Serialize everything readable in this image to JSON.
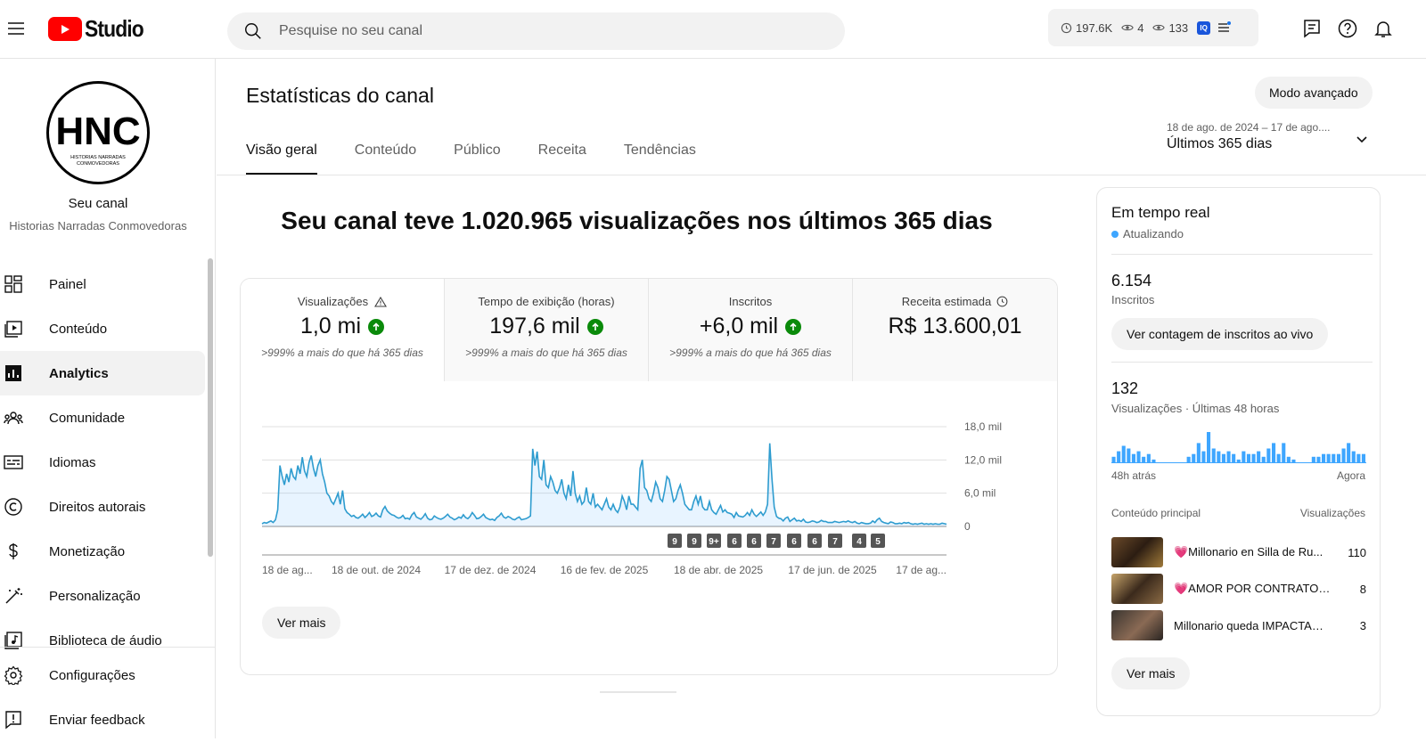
{
  "header": {
    "logo_text": "Studio",
    "search_placeholder": "Pesquise no seu canal",
    "stat_watch": "197.6K",
    "stat_a": "4",
    "stat_b": "133",
    "ext_label": "IQ"
  },
  "sidebar": {
    "avatar_text": "HNC",
    "avatar_sub1": "HISTORIAS NARRADAS",
    "avatar_sub2": "CONMOVEDORAS",
    "channel_label": "Seu canal",
    "channel_name": "Historias Narradas Conmovedoras",
    "items": [
      {
        "label": "Painel",
        "icon": "dashboard-icon"
      },
      {
        "label": "Conteúdo",
        "icon": "content-icon"
      },
      {
        "label": "Analytics",
        "icon": "analytics-icon",
        "active": true
      },
      {
        "label": "Comunidade",
        "icon": "community-icon"
      },
      {
        "label": "Idiomas",
        "icon": "subtitles-icon"
      },
      {
        "label": "Direitos autorais",
        "icon": "copyright-icon"
      },
      {
        "label": "Monetização",
        "icon": "monetization-icon"
      },
      {
        "label": "Personalização",
        "icon": "customization-icon"
      },
      {
        "label": "Biblioteca de áudio",
        "icon": "audio-library-icon"
      }
    ],
    "bottom": [
      {
        "label": "Configurações",
        "icon": "settings-icon"
      },
      {
        "label": "Enviar feedback",
        "icon": "feedback-icon"
      }
    ]
  },
  "main": {
    "title": "Estatísticas do canal",
    "advanced_mode": "Modo avançado",
    "tabs": [
      "Visão geral",
      "Conteúdo",
      "Público",
      "Receita",
      "Tendências"
    ],
    "date_range": "18 de ago. de 2024 – 17 de ago....",
    "period": "Últimos 365 dias",
    "headline": "Seu canal teve 1.020.965 visualizações nos últimos 365 dias",
    "metrics": [
      {
        "label": "Visualizações",
        "value": "1,0 mi",
        "sub": ">999% a mais do que há 365 dias"
      },
      {
        "label": "Tempo de exibição (horas)",
        "value": "197,6 mil",
        "sub": ">999% a mais do que há 365 dias"
      },
      {
        "label": "Inscritos",
        "value": "+6,0 mil",
        "sub": ">999% a mais do que há 365 dias"
      },
      {
        "label": "Receita estimada",
        "value": "R$ 13.600,01",
        "sub": ""
      }
    ],
    "see_more": "Ver mais",
    "accent": "#3ea6ff"
  },
  "chart_data": {
    "type": "area",
    "y_tick_labels": [
      "18,0 mil",
      "12,0 mil",
      "6,0 mil",
      "0"
    ],
    "y_ticks": [
      18000,
      12000,
      6000,
      0
    ],
    "ylim": [
      0,
      18000
    ],
    "x_tick_labels": [
      "18 de ag...",
      "18 de out. de 2024",
      "17 de dez. de 2024",
      "16 de fev. de 2025",
      "18 de abr. de 2025",
      "17 de jun. de 2025",
      "17 de ag..."
    ],
    "series": [
      {
        "values": [
          500,
          700,
          600,
          800,
          1000,
          700,
          1200,
          3000,
          11000,
          9000,
          7500,
          9500,
          8000,
          10500,
          9000,
          8500,
          11000,
          9500,
          12500,
          10000,
          9000,
          11500,
          12800,
          10500,
          9000,
          11000,
          12000,
          9500,
          8000,
          6000,
          5500,
          4500,
          4000,
          5000,
          6000,
          4000,
          6500,
          3200,
          2500,
          2200,
          1800,
          2000,
          1600,
          1500,
          1800,
          2200,
          1600,
          2000,
          2500,
          1800,
          2000,
          2400,
          1900,
          1700,
          3000,
          3600,
          2800,
          2400,
          2100,
          2000,
          1700,
          1500,
          1600,
          2000,
          1400,
          1500,
          1300,
          2100,
          2500,
          1700,
          1500,
          1300,
          1700,
          2300,
          1500,
          1200,
          1300,
          1900,
          1600,
          1400,
          1300,
          1500,
          1800,
          2200,
          1700,
          1500,
          1200,
          1400,
          1700,
          1500,
          2100,
          1600,
          1400,
          1800,
          2500,
          2000,
          1400,
          1500,
          1800,
          2200,
          1600,
          1400,
          1200,
          1300,
          1100,
          1600,
          1900,
          2400,
          1700,
          1500,
          1800,
          1600,
          1300,
          1200,
          1500,
          1700,
          1200,
          1300,
          1400,
          1600,
          1900,
          14000,
          11000,
          13500,
          9000,
          8500,
          12000,
          7500,
          7000,
          9000,
          8000,
          6500,
          6000,
          7000,
          8500,
          6000,
          5000,
          7500,
          5500,
          10000,
          6000,
          4500,
          5500,
          4000,
          4500,
          7000,
          4500,
          4000,
          6000,
          3500,
          4000,
          3500,
          3000,
          4000,
          5000,
          3500,
          3000,
          4000,
          3000,
          2500,
          3500,
          5500,
          4500,
          3000,
          5500,
          4000,
          4000,
          3500,
          3000,
          10500,
          12000,
          7000,
          6500,
          5000,
          4500,
          6000,
          8000,
          7000,
          5000,
          4500,
          6500,
          9000,
          8500,
          6500,
          4500,
          5000,
          6500,
          7500,
          6000,
          4000,
          3500,
          3000,
          3000,
          4500,
          5500,
          4000,
          5500,
          3500,
          3000,
          3000,
          4500,
          3000,
          2500,
          2200,
          3000,
          3800,
          2600,
          3000,
          2500,
          2400,
          2200,
          1600,
          2500,
          1900,
          1800,
          1700,
          2000,
          2500,
          2000,
          3000,
          2200,
          1800,
          2200,
          2600,
          2000,
          2600,
          4000,
          15000,
          8500,
          3500,
          1800,
          1500,
          1400,
          1000,
          1500,
          1700,
          900,
          1200,
          1500,
          1000,
          1100,
          900,
          1300,
          800,
          700,
          800,
          1000,
          900,
          700,
          800,
          1100,
          900,
          900,
          700,
          700,
          700,
          900,
          800,
          700,
          800,
          900,
          800,
          1000,
          800,
          700,
          900,
          600,
          500,
          700,
          600,
          500,
          500,
          600,
          1000,
          700,
          1200,
          1500,
          900,
          700,
          600,
          500,
          800,
          700,
          500,
          500,
          600,
          500,
          700,
          600,
          700,
          500,
          400,
          500,
          400,
          500,
          600,
          400,
          500,
          400,
          500,
          400,
          500,
          400,
          400,
          600,
          500,
          400
        ]
      }
    ],
    "markers": [
      "9",
      "9",
      "9+",
      "6",
      "6",
      "7",
      "6",
      "6",
      "7",
      "4",
      "5"
    ]
  },
  "realtime": {
    "title": "Em tempo real",
    "status": "Atualizando",
    "subs_value": "6.154",
    "subs_label": "Inscritos",
    "live_button": "Ver contagem de inscritos ao vivo",
    "views_value": "132",
    "views_label": "Visualizações · Últimas 48 horas",
    "mini_chart": [
      2,
      4,
      6,
      5,
      3,
      4,
      2,
      3,
      1,
      0,
      0,
      0,
      0,
      0,
      0,
      2,
      3,
      7,
      4,
      11,
      5,
      4,
      3,
      4,
      3,
      1,
      4,
      3,
      3,
      4,
      2,
      5,
      7,
      3,
      7,
      2,
      1,
      0,
      0,
      0,
      2,
      2,
      3,
      3,
      3,
      3,
      5,
      7,
      4,
      3,
      3
    ],
    "axis_left": "48h atrás",
    "axis_right": "Agora",
    "top_content_label": "Conteúdo principal",
    "top_views_label": "Visualizações",
    "top_content": [
      {
        "title": "💗Millonario en Silla de Ru...",
        "views": "110"
      },
      {
        "title": "💗AMOR POR CONTRATO ¡M...",
        "views": "8"
      },
      {
        "title": "Millonario queda IMPACTADO...",
        "views": "3"
      }
    ],
    "see_more": "Ver mais"
  }
}
